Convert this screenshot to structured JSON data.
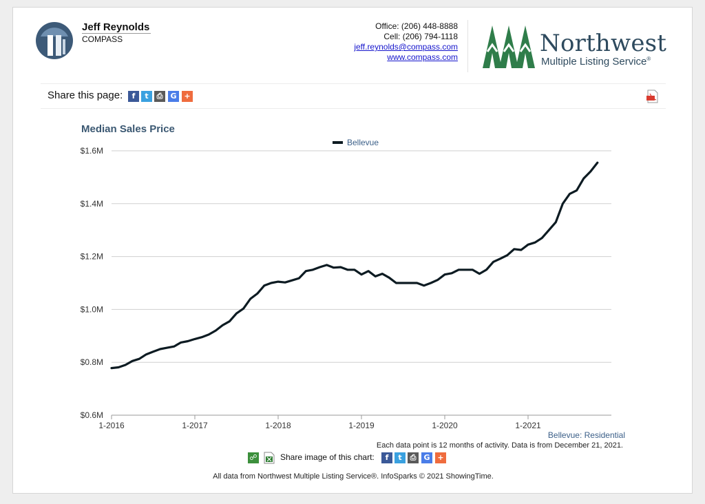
{
  "agent": {
    "name": "Jeff Reynolds",
    "company": "COMPASS"
  },
  "contact": {
    "office": "Office: (206) 448-8888",
    "cell": "Cell: (206) 794-1118",
    "email": "jeff.reynolds@compass.com",
    "website": "www.compass.com"
  },
  "brand": {
    "name": "Northwest",
    "subtitle": "Multiple Listing Service",
    "registered": "®",
    "color": "#2e4a5e",
    "tree_color": "#2f7d4a"
  },
  "share_page": {
    "label": "Share this page:",
    "icons": [
      "facebook-icon",
      "twitter-icon",
      "print-icon",
      "google-icon",
      "plus-icon"
    ]
  },
  "chart_data": {
    "type": "line",
    "title": "Median Sales Price",
    "xlabel": "",
    "ylabel": "",
    "ylim": [
      0.6,
      1.6
    ],
    "yticks": [
      0.6,
      0.8,
      1.0,
      1.2,
      1.4,
      1.6
    ],
    "ytick_labels": [
      "$0.6M",
      "$0.8M",
      "$1.0M",
      "$1.2M",
      "$1.4M",
      "$1.6M"
    ],
    "xticks": [
      "1-2016",
      "1-2017",
      "1-2018",
      "1-2019",
      "1-2020",
      "1-2021"
    ],
    "grid": "horizontal",
    "legend_position": "top-center",
    "series": [
      {
        "name": "Bellevue",
        "color": "#0d1b22",
        "values": [
          0.778,
          0.781,
          0.79,
          0.805,
          0.813,
          0.83,
          0.84,
          0.85,
          0.855,
          0.86,
          0.875,
          0.88,
          0.888,
          0.895,
          0.905,
          0.92,
          0.94,
          0.955,
          0.985,
          1.003,
          1.04,
          1.06,
          1.09,
          1.1,
          1.105,
          1.102,
          1.11,
          1.118,
          1.145,
          1.15,
          1.16,
          1.168,
          1.158,
          1.16,
          1.15,
          1.15,
          1.132,
          1.145,
          1.125,
          1.135,
          1.12,
          1.1,
          1.1,
          1.1,
          1.1,
          1.09,
          1.1,
          1.112,
          1.132,
          1.137,
          1.15,
          1.15,
          1.15,
          1.135,
          1.15,
          1.18,
          1.192,
          1.205,
          1.228,
          1.225,
          1.245,
          1.253,
          1.27,
          1.3,
          1.33,
          1.4,
          1.437,
          1.45,
          1.495,
          1.522,
          1.555
        ]
      }
    ],
    "source_label": "Bellevue: Residential"
  },
  "notes": {
    "data_note": "Each data point is 12 months of activity. Data is from December 21, 2021.",
    "share_image_label": "Share image of this chart:",
    "footer": "All data from Northwest Multiple Listing Service®. InfoSparks © 2021 ShowingTime."
  }
}
